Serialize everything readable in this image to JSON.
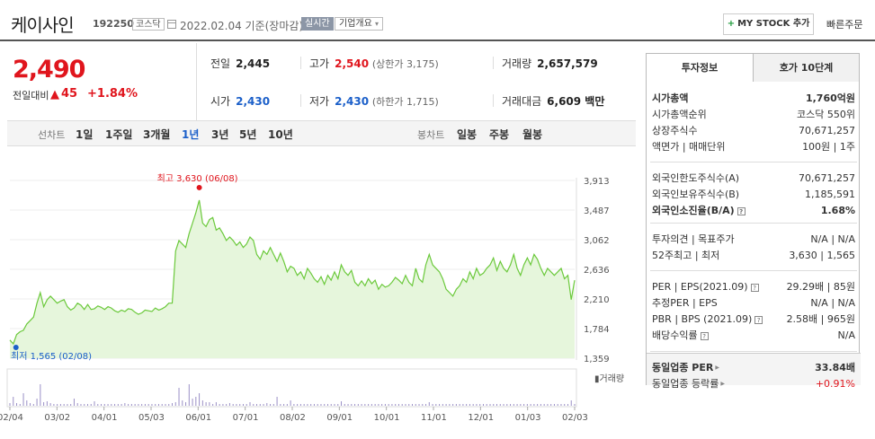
{
  "header": {
    "company_name": "케이사인",
    "code": "192250",
    "market": "코스닥",
    "date": "2022.02.04 기준(장마감)",
    "realtime": "실시간",
    "overview": "기업개요",
    "mystock": "MY STOCK 추가",
    "quick_order": "빠른주문"
  },
  "price": {
    "current": "2,490",
    "change_label": "전일대비",
    "change_arrow": "▲",
    "change": "45",
    "change_pct": "+1.84%",
    "up_color": "#e0151d"
  },
  "stats": {
    "prev_label": "전일",
    "prev": "2,445",
    "high_label": "고가",
    "high": "2,540",
    "upper_limit": "(상한가 3,175)",
    "volume_label": "거래량",
    "volume": "2,657,579",
    "open_label": "시가",
    "open": "2,430",
    "low_label": "저가",
    "low": "2,430",
    "lower_limit": "(하한가 1,715)",
    "amount_label": "거래대금",
    "amount": "6,609 백만"
  },
  "period_bar": {
    "line_label": "선차트",
    "line_items": [
      "1일",
      "1주일",
      "3개월",
      "1년",
      "3년",
      "5년",
      "10년"
    ],
    "active": "1년",
    "candle_label": "봉차트",
    "candle_items": [
      "일봉",
      "주봉",
      "월봉"
    ]
  },
  "chart_data": {
    "type": "area",
    "title": "",
    "series": [
      {
        "values": [
          1620,
          1565,
          1700,
          1740,
          1760,
          1850,
          1900,
          1950,
          2150,
          2300,
          2100,
          2200,
          2250,
          2200,
          2150,
          2180,
          2200,
          2100,
          2050,
          2080,
          2150,
          2120,
          2060,
          2130,
          2060,
          2070,
          2110,
          2090,
          2060,
          2100,
          2080,
          2040,
          2020,
          2050,
          2030,
          2070,
          2060,
          2020,
          1990,
          2010,
          2050,
          2040,
          2030,
          2080,
          2050,
          2070,
          2100,
          2150,
          2150,
          2900,
          3050,
          3000,
          2950,
          3150,
          3300,
          3450,
          3630,
          3300,
          3250,
          3350,
          3380,
          3200,
          3230,
          3150,
          3050,
          3100,
          3050,
          2980,
          3030,
          2950,
          3000,
          3100,
          3050,
          2850,
          2780,
          2900,
          2850,
          2950,
          2850,
          2750,
          2870,
          2750,
          2600,
          2680,
          2650,
          2550,
          2600,
          2500,
          2650,
          2580,
          2500,
          2450,
          2530,
          2420,
          2550,
          2480,
          2600,
          2500,
          2700,
          2600,
          2550,
          2620,
          2450,
          2400,
          2470,
          2400,
          2500,
          2430,
          2480,
          2350,
          2420,
          2380,
          2400,
          2450,
          2520,
          2480,
          2430,
          2550,
          2450,
          2400,
          2650,
          2500,
          2450,
          2700,
          2850,
          2700,
          2650,
          2600,
          2500,
          2350,
          2300,
          2250,
          2350,
          2400,
          2500,
          2450,
          2600,
          2500,
          2650,
          2550,
          2580,
          2650,
          2700,
          2800,
          2620,
          2750,
          2650,
          2600,
          2700,
          2850,
          2650,
          2550,
          2700,
          2800,
          2700,
          2850,
          2780,
          2650,
          2550,
          2650,
          2600,
          2550,
          2600,
          2650,
          2500,
          2550,
          2200,
          2480
        ]
      }
    ],
    "x_ticks": [
      "02/04",
      "03/02",
      "04/01",
      "05/03",
      "06/01",
      "07/01",
      "08/02",
      "09/01",
      "10/01",
      "11/01",
      "12/01",
      "01/03",
      "02/03"
    ],
    "y_ticks": [
      "3,913",
      "3,487",
      "3,062",
      "2,636",
      "2,210",
      "1,784",
      "1,359"
    ],
    "ylim": [
      1359,
      3913
    ],
    "max_label": "최고 3,630 (06/08)",
    "min_label": "최저 1,565 (02/08)",
    "volume_label": "거래량",
    "max_value": 3630,
    "min_value": 1565,
    "line_color": "#6bc93b",
    "fill_color": "#e6f6dc",
    "max_dot_color": "#e0151d",
    "min_dot_color": "#1b5fc9"
  },
  "side": {
    "tab_active": "투자정보",
    "tab_inactive": "호가 10단계",
    "rows": [
      {
        "k": "시가총액",
        "v": "1,760억원"
      },
      {
        "k": "시가총액순위",
        "v": "코스닥 550위"
      },
      {
        "k": "상장주식수",
        "v": "70,671,257"
      },
      {
        "k": "액면가 | 매매단위",
        "v": "100원 | 1주"
      },
      {
        "k": "외국인한도주식수(A)",
        "v": "70,671,257"
      },
      {
        "k": "외국인보유주식수(B)",
        "v": "1,185,591"
      },
      {
        "k": "외국인소진율(B/A)",
        "v": "1.68%"
      },
      {
        "k": "투자의견 | 목표주가",
        "v": "N/A | N/A"
      },
      {
        "k": "52주최고 | 최저",
        "v": "3,630 | 1,565"
      },
      {
        "k": "PER | EPS(2021.09)",
        "v": "29.29배 | 85원"
      },
      {
        "k": "추정PER | EPS",
        "v": "N/A | N/A"
      },
      {
        "k": "PBR | BPS (2021.09)",
        "v": "2.58배 | 965원"
      },
      {
        "k": "배당수익률",
        "v": "N/A"
      },
      {
        "k": "동일업종 PER",
        "v": "33.84배"
      },
      {
        "k": "동일업종 등락률",
        "v": "+0.91%"
      }
    ]
  }
}
